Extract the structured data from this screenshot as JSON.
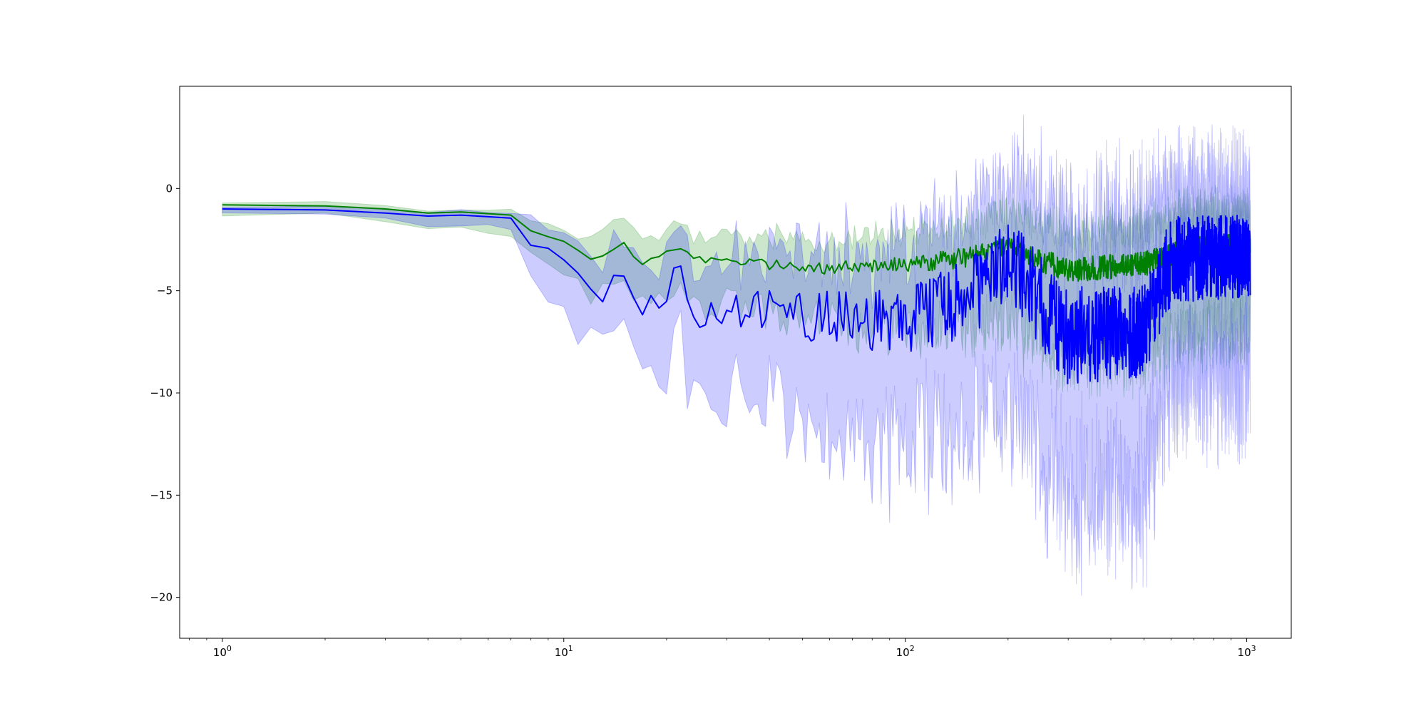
{
  "chart_data": {
    "type": "line",
    "title": "",
    "xlabel": "",
    "ylabel": "",
    "xscale": "log",
    "xlim": [
      0.75,
      1350
    ],
    "ylim": [
      -22,
      5
    ],
    "grid": false,
    "legend": "none",
    "x_ticks": [
      {
        "base": "10",
        "exp": "0",
        "value": 1
      },
      {
        "base": "10",
        "exp": "1",
        "value": 10
      },
      {
        "base": "10",
        "exp": "2",
        "value": 100
      },
      {
        "base": "10",
        "exp": "3",
        "value": 1000
      }
    ],
    "y_ticks": [
      {
        "label": "0",
        "value": 0
      },
      {
        "label": "−5",
        "value": -5
      },
      {
        "label": "−10",
        "value": -10
      },
      {
        "label": "−15",
        "value": -15
      },
      {
        "label": "−20",
        "value": -20
      }
    ],
    "series": [
      {
        "color": "#008000",
        "band_color": "#008000",
        "band_opacity": 0.2,
        "x_range": [
          1,
          1024
        ],
        "anchors": [
          [
            1,
            -0.8,
            0.15,
            0.5
          ],
          [
            2,
            -0.85,
            0.15,
            0.5
          ],
          [
            3,
            -1.0,
            0.15,
            0.55
          ],
          [
            4,
            -1.2,
            0.15,
            0.6
          ],
          [
            5,
            -1.15,
            0.15,
            0.6
          ],
          [
            7,
            -1.3,
            0.2,
            0.7
          ],
          [
            8,
            -2.1,
            0.5,
            1.0
          ],
          [
            10,
            -2.5,
            0.8,
            1.2
          ],
          [
            12,
            -3.4,
            1.0,
            1.5
          ],
          [
            15,
            -2.7,
            1.0,
            1.6
          ],
          [
            17,
            -3.7,
            1.0,
            1.7
          ],
          [
            22,
            -2.8,
            1.0,
            1.8
          ],
          [
            25,
            -3.5,
            1.0,
            2.0
          ],
          [
            40,
            -3.7,
            1.2,
            2.2
          ],
          [
            60,
            -3.9,
            1.3,
            2.5
          ],
          [
            100,
            -3.7,
            1.5,
            3.0
          ],
          [
            150,
            -3.4,
            1.5,
            3.3
          ],
          [
            200,
            -2.9,
            1.6,
            3.6
          ],
          [
            300,
            -4.0,
            1.8,
            4.0
          ],
          [
            500,
            -3.7,
            1.8,
            4.1
          ],
          [
            700,
            -2.9,
            1.8,
            3.9
          ],
          [
            1024,
            -2.7,
            1.6,
            3.7
          ]
        ],
        "noise": [
          [
            1,
            0.0
          ],
          [
            7,
            0.0
          ],
          [
            8,
            0.1
          ],
          [
            20,
            0.2
          ],
          [
            60,
            0.3
          ],
          [
            150,
            0.5
          ],
          [
            300,
            0.6
          ],
          [
            1024,
            0.6
          ]
        ]
      },
      {
        "color": "#0000ff",
        "band_color": "#0000ff",
        "band_opacity": 0.2,
        "x_range": [
          1,
          1024
        ],
        "anchors": [
          [
            1,
            -1.0,
            0.1,
            0.15
          ],
          [
            2,
            -1.05,
            0.15,
            0.25
          ],
          [
            3,
            -1.2,
            0.2,
            0.35
          ],
          [
            4,
            -1.35,
            0.25,
            0.4
          ],
          [
            5,
            -1.3,
            0.25,
            0.4
          ],
          [
            7,
            -1.45,
            0.25,
            0.45
          ],
          [
            8,
            -2.9,
            1.0,
            1.6
          ],
          [
            10,
            -3.6,
            1.5,
            2.5
          ],
          [
            13,
            -5.2,
            1.8,
            2.3
          ],
          [
            15,
            -3.6,
            2.0,
            2.8
          ],
          [
            17,
            -5.8,
            2.0,
            3.0
          ],
          [
            21,
            -4.8,
            2.2,
            3.5
          ],
          [
            22,
            -3.4,
            2.5,
            3.5
          ],
          [
            24,
            -5.8,
            2.3,
            3.8
          ],
          [
            40,
            -6.0,
            2.8,
            4.5
          ],
          [
            60,
            -6.3,
            3.0,
            5.0
          ],
          [
            100,
            -6.6,
            3.5,
            6.0
          ],
          [
            150,
            -5.4,
            3.5,
            6.0
          ],
          [
            200,
            -3.5,
            3.8,
            6.5
          ],
          [
            300,
            -7.2,
            5.0,
            7.5
          ],
          [
            500,
            -7.0,
            5.0,
            7.5
          ],
          [
            600,
            -3.5,
            3.5,
            6.0
          ],
          [
            1024,
            -3.3,
            3.0,
            5.5
          ]
        ],
        "noise": [
          [
            1,
            0.0
          ],
          [
            7,
            0.0
          ],
          [
            8,
            0.3
          ],
          [
            20,
            0.9
          ],
          [
            60,
            1.3
          ],
          [
            150,
            2.0
          ],
          [
            300,
            2.4
          ],
          [
            1024,
            2.0
          ]
        ]
      }
    ]
  }
}
